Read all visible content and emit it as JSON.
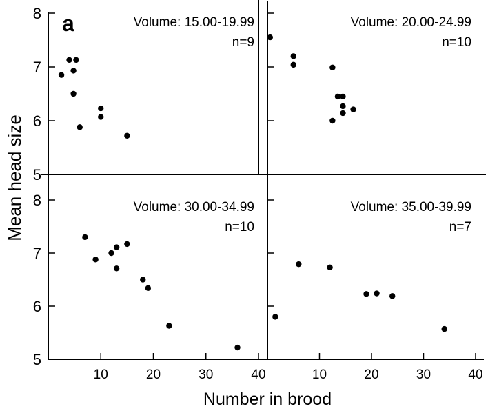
{
  "figure": {
    "panel_letter": "a",
    "ylabel": "Mean head size",
    "xlabel": "Number in brood"
  },
  "chart_data": [
    {
      "type": "scatter",
      "volume_label": "Volume:",
      "volume_range": "15.00-19.99",
      "n_label": "n=9",
      "xlim": [
        0,
        40
      ],
      "ylim": [
        5,
        8
      ],
      "xticks": [
        "10",
        "20",
        "30",
        "40"
      ],
      "yticks": [
        "5",
        "6",
        "7",
        "8"
      ],
      "points": [
        {
          "x": 2.5,
          "y": 6.85
        },
        {
          "x": 4.0,
          "y": 7.13
        },
        {
          "x": 5.3,
          "y": 7.13
        },
        {
          "x": 4.8,
          "y": 6.93
        },
        {
          "x": 4.8,
          "y": 6.5
        },
        {
          "x": 6.0,
          "y": 5.88
        },
        {
          "x": 10.0,
          "y": 6.23
        },
        {
          "x": 10.0,
          "y": 6.07
        },
        {
          "x": 15.0,
          "y": 5.72
        }
      ]
    },
    {
      "type": "scatter",
      "volume_label": "Volume:",
      "volume_range": "20.00-24.99",
      "n_label": "n=10",
      "xlim": [
        0,
        40
      ],
      "ylim": [
        5,
        8
      ],
      "xticks": [
        "10",
        "20",
        "30",
        "40"
      ],
      "yticks": [
        "5",
        "6",
        "7",
        "8"
      ],
      "points": [
        {
          "x": 0.5,
          "y": 7.55
        },
        {
          "x": 5.0,
          "y": 7.2
        },
        {
          "x": 5.0,
          "y": 7.04
        },
        {
          "x": 12.5,
          "y": 6.99
        },
        {
          "x": 13.5,
          "y": 6.45
        },
        {
          "x": 14.5,
          "y": 6.45
        },
        {
          "x": 14.5,
          "y": 6.27
        },
        {
          "x": 14.5,
          "y": 6.14
        },
        {
          "x": 16.5,
          "y": 6.21
        },
        {
          "x": 12.5,
          "y": 6.0
        }
      ]
    },
    {
      "type": "scatter",
      "volume_label": "Volume:",
      "volume_range": "30.00-34.99",
      "n_label": "n=10",
      "xlim": [
        0,
        40
      ],
      "ylim": [
        5,
        8
      ],
      "xticks": [
        "10",
        "20",
        "30",
        "40"
      ],
      "yticks": [
        "5",
        "6",
        "7",
        "8"
      ],
      "points": [
        {
          "x": 7.0,
          "y": 7.3
        },
        {
          "x": 9.0,
          "y": 6.88
        },
        {
          "x": 12.0,
          "y": 7.0
        },
        {
          "x": 13.0,
          "y": 7.11
        },
        {
          "x": 13.0,
          "y": 6.71
        },
        {
          "x": 15.0,
          "y": 7.17
        },
        {
          "x": 18.0,
          "y": 6.5
        },
        {
          "x": 19.0,
          "y": 6.34
        },
        {
          "x": 23.0,
          "y": 5.63
        },
        {
          "x": 36.0,
          "y": 5.22
        }
      ]
    },
    {
      "type": "scatter",
      "volume_label": "Volume:",
      "volume_range": "35.00-39.99",
      "n_label": "n=7",
      "xlim": [
        0,
        40
      ],
      "ylim": [
        5,
        8
      ],
      "xticks": [
        "10",
        "20",
        "30",
        "40"
      ],
      "yticks": [
        "5",
        "6",
        "7",
        "8"
      ],
      "points": [
        {
          "x": 1.5,
          "y": 5.8
        },
        {
          "x": 6.0,
          "y": 6.79
        },
        {
          "x": 12.0,
          "y": 6.73
        },
        {
          "x": 19.0,
          "y": 6.23
        },
        {
          "x": 21.0,
          "y": 6.24
        },
        {
          "x": 24.0,
          "y": 6.19
        },
        {
          "x": 34.0,
          "y": 5.57
        }
      ]
    }
  ]
}
